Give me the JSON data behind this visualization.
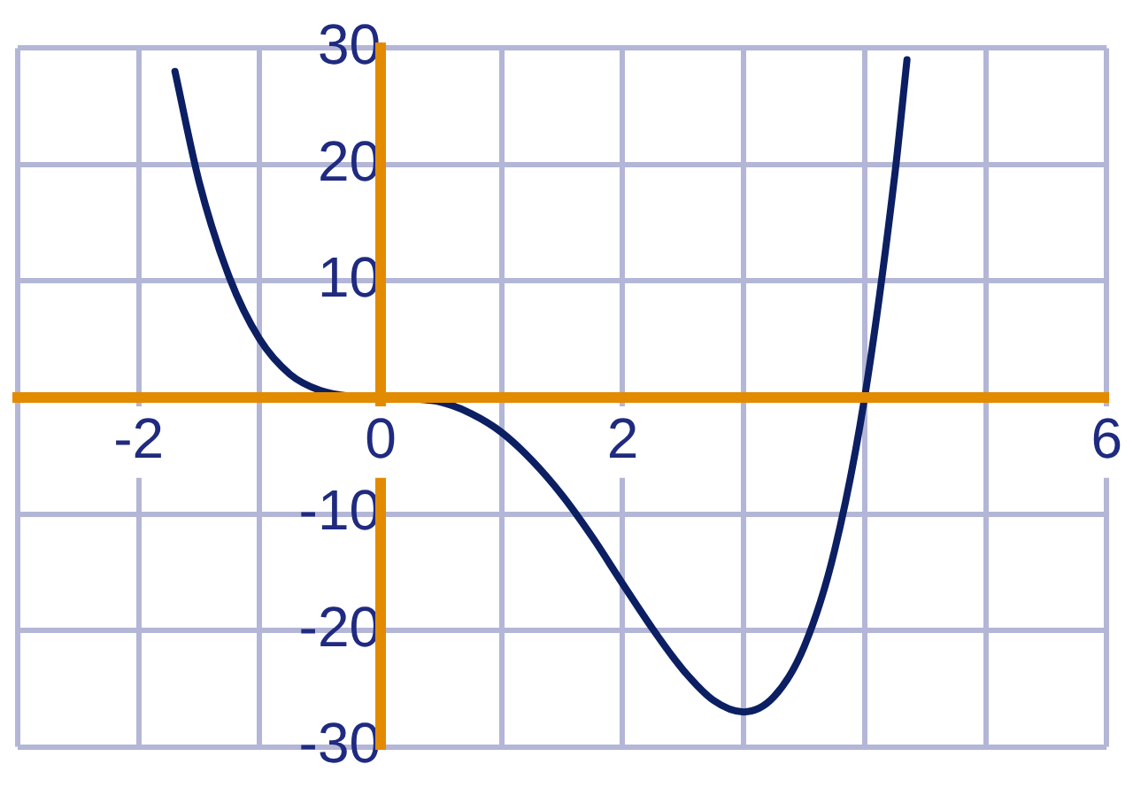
{
  "chart_data": {
    "type": "line",
    "x": [
      -1.7,
      -1.5,
      -1.25,
      -1,
      -0.75,
      -0.5,
      -0.25,
      0,
      0.25,
      0.5,
      0.75,
      1,
      1.25,
      1.5,
      1.75,
      2,
      2.25,
      2.5,
      2.75,
      3,
      3.25,
      3.5,
      3.75,
      4,
      4.25,
      4.35
    ],
    "series": [
      {
        "color": "#0c1f63",
        "values": [
          28,
          18.5,
          10.3,
          5,
          2,
          0.6,
          0.1,
          0,
          -0.1,
          -0.4,
          -1.4,
          -3,
          -5.4,
          -8.4,
          -12,
          -16,
          -19.9,
          -23.4,
          -26,
          -27,
          -25.7,
          -21.4,
          -13.2,
          0,
          19.2,
          29
        ]
      }
    ],
    "xlim": [
      -3,
      6
    ],
    "ylim": [
      -30,
      30
    ],
    "xticks": [
      {
        "value": -3,
        "label": null
      },
      -2,
      {
        "value": -1,
        "label": null
      },
      0,
      {
        "value": 1,
        "label": null
      },
      2,
      {
        "value": 3,
        "label": null
      },
      {
        "value": 4,
        "label": null
      },
      {
        "value": 5,
        "label": null
      },
      6
    ],
    "yticks": [
      -30,
      -20,
      -10,
      {
        "value": 0,
        "label": null
      },
      10,
      20,
      30
    ],
    "grid": true,
    "legend": false,
    "marker": "none",
    "line_style": "solid"
  }
}
